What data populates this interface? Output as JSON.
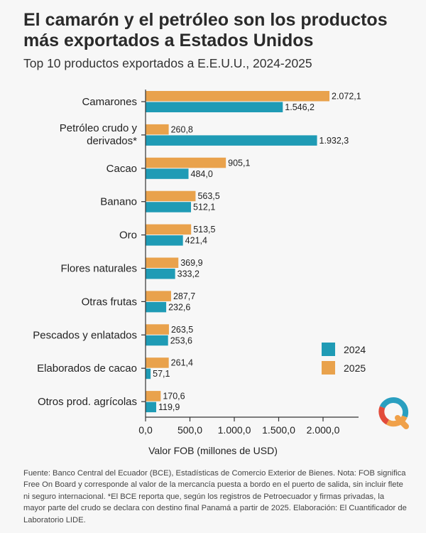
{
  "header": {
    "title": "El camarón y el petróleo son los productos más exportados a Estados Unidos",
    "subtitle": "Top 10 productos exportados a E.E.U.U., 2024-2025"
  },
  "footer": {
    "source": "Fuente: Banco Central del Ecuador (BCE), Estadísticas de Comercio Exterior de Bienes. Nota: FOB significa Free On Board y corresponde al valor de la mercancía puesta a bordo en el puerto de salida, sin incluir flete ni seguro internacional. *El BCE reporta que, según los registros de Petroecuador y firmas privadas, la mayor parte del crudo se declara con destino final Panamá a partir de 2025. Elaboración: El Cuantificador de Laboratorio LIDE."
  },
  "colors": {
    "series_2024": "#1f9bb5",
    "series_2025": "#e9a24c",
    "axis": "#333333",
    "logo_orange": "#f0a14a",
    "logo_blue": "#2a9fc0",
    "logo_red": "#e24b3b"
  },
  "logo": {
    "icon": "quantifier-q-logo-icon"
  },
  "chart_data": {
    "type": "bar",
    "orientation": "horizontal",
    "categories": [
      "Camarones",
      "Petróleo crudo y derivados*",
      "Cacao",
      "Banano",
      "Oro",
      "Flores naturales",
      "Otras frutas",
      "Pescados y enlatados",
      "Elaborados de cacao",
      "Otros prod. agrícolas"
    ],
    "category_lines": [
      [
        "Camarones"
      ],
      [
        "Petróleo crudo y",
        "derivados*"
      ],
      [
        "Cacao"
      ],
      [
        "Banano"
      ],
      [
        "Oro"
      ],
      [
        "Flores naturales"
      ],
      [
        "Otras frutas"
      ],
      [
        "Pescados y enlatados"
      ],
      [
        "Elaborados de cacao"
      ],
      [
        "Otros prod. agrícolas"
      ]
    ],
    "series": [
      {
        "name": "2025",
        "values": [
          2072.1,
          260.8,
          905.1,
          563.5,
          513.5,
          369.9,
          287.7,
          263.5,
          261.4,
          170.6
        ],
        "labels": [
          "2.072,1",
          "260,8",
          "905,1",
          "563,5",
          "513,5",
          "369,9",
          "287,7",
          "263,5",
          "261,4",
          "170,6"
        ]
      },
      {
        "name": "2024",
        "values": [
          1546.2,
          1932.3,
          484.0,
          512.1,
          421.4,
          333.2,
          232.6,
          253.6,
          57.1,
          119.9
        ],
        "labels": [
          "1.546,2",
          "1.932,3",
          "484,0",
          "512,1",
          "421,4",
          "333,2",
          "232,6",
          "253,6",
          "57,1",
          "119,9"
        ]
      }
    ],
    "xlabel": "Valor FOB (millones de USD)",
    "xlim": [
      0,
      2000
    ],
    "xticks": [
      0,
      500,
      1000,
      1500,
      2000
    ],
    "xtick_labels": [
      "0,0",
      "500,0",
      "1.000,0",
      "1.500,0",
      "2.000,0"
    ],
    "legend": {
      "placement": "bottom-right",
      "items": [
        {
          "name": "2024"
        },
        {
          "name": "2025"
        }
      ]
    },
    "grid": false
  }
}
